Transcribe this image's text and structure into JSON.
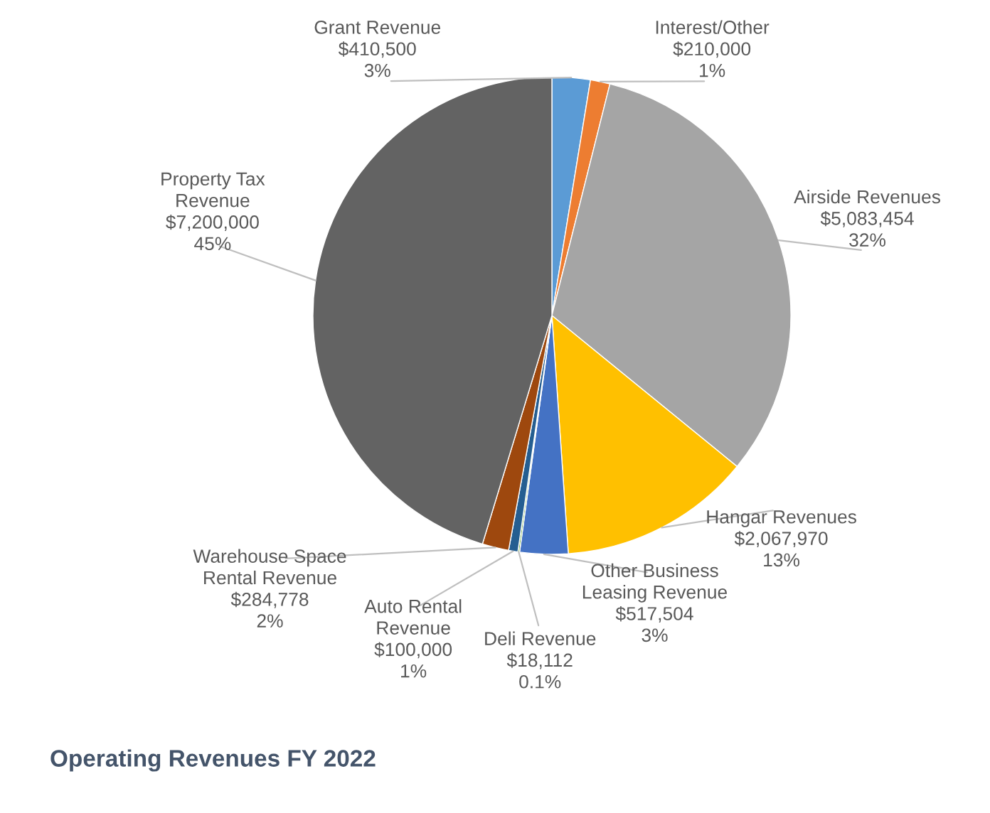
{
  "chart_data": {
    "type": "pie",
    "title": "Operating Revenues FY 2022",
    "categories": [
      "Grant Revenue",
      "Interest/Other",
      "Airside Revenues",
      "Hangar Revenues",
      "Other Business\nLeasing Revenue",
      "Deli Revenue",
      "Auto Rental\nRevenue",
      "Warehouse Space\nRental Revenue",
      "Property Tax\nRevenue"
    ],
    "values": [
      410500,
      210000,
      5083454,
      2067970,
      517504,
      18112,
      100000,
      284778,
      7200000
    ],
    "value_labels": [
      "$410,500\n3%",
      "$210,000\n1%",
      "$5,083,454\n32%",
      "$2,067,970\n13%",
      "$517,504\n3%",
      "$18,112\n0.1%",
      "$100,000\n1%",
      "$284,778\n2%",
      "$7,200,000\n45%"
    ],
    "colors": [
      "#5b9bd5",
      "#ed7d31",
      "#a5a5a5",
      "#ffc000",
      "#4472c4",
      "#70ad47",
      "#255e91",
      "#9e480e",
      "#636363"
    ],
    "legend": false
  }
}
